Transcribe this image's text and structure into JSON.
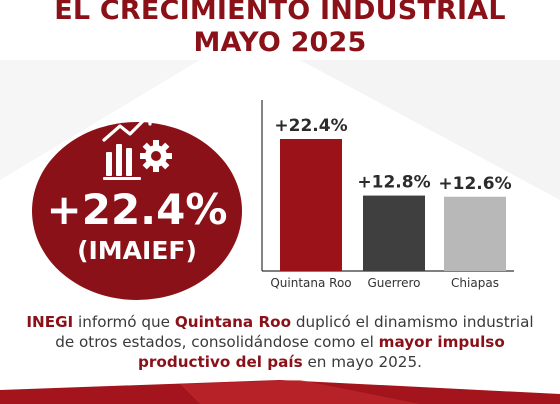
{
  "title": {
    "line1": "EL CRECIMIENTO INDUSTRIAL",
    "line2": "MAYO 2025"
  },
  "highlight": {
    "value": "+22.4%",
    "label": "(IMAIEF)",
    "icon": "industry-growth-icon"
  },
  "colors": {
    "brand": "#8b1118",
    "bar_quintana_roo": "#9b1219",
    "bar_guerrero": "#3f3f3f",
    "bar_chiapas": "#b8b8b8"
  },
  "chart_data": {
    "type": "bar",
    "categories": [
      "Quintana Roo",
      "Guerrero",
      "Chiapas"
    ],
    "values": [
      22.4,
      12.8,
      12.6
    ],
    "value_labels": [
      "+22.4%",
      "+12.8%",
      "+12.6%"
    ],
    "ylim": [
      0,
      22.4
    ],
    "grid": false
  },
  "description": {
    "t1": "INEGI",
    "t2": " informó que ",
    "t3": "Quintana Roo",
    "t4": " duplicó el dinamismo industrial de otros estados, consolidándose como el ",
    "t5": "mayor impulso productivo del país",
    "t6": " en mayo 2025."
  }
}
